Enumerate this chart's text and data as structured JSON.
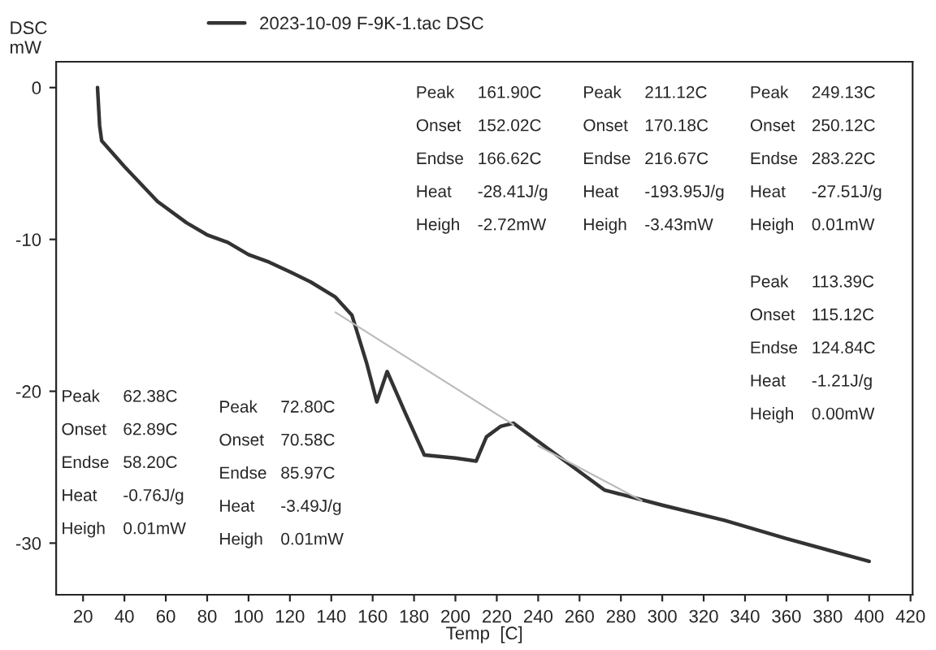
{
  "chart_data": {
    "type": "line",
    "xlabel": "Temp  [C]",
    "ylabel": "DSC\nmW",
    "series": [
      {
        "name": "2023-10-09 F-9K-1.tac DSC",
        "color": "#333333",
        "x": [
          27,
          28,
          29,
          40,
          56,
          70,
          80,
          90,
          100,
          110,
          121,
          130,
          142,
          150,
          157,
          162,
          167,
          176,
          185,
          200,
          210,
          215,
          222,
          228,
          240,
          255,
          272,
          300,
          330,
          360,
          400
        ],
        "values": [
          0,
          -2.5,
          -3.5,
          -5.2,
          -7.5,
          -8.9,
          -9.7,
          -10.2,
          -11.0,
          -11.5,
          -12.2,
          -12.8,
          -13.8,
          -15.0,
          -18.1,
          -20.7,
          -18.7,
          -21.5,
          -24.2,
          -24.4,
          -24.6,
          -23.0,
          -22.3,
          -22.1,
          -23.3,
          -24.8,
          -26.5,
          -27.5,
          -28.5,
          -29.7,
          -31.2
        ]
      },
      {
        "color": "#bbbbbb",
        "x": [
          142,
          228
        ],
        "values": [
          -14.8,
          -22.2
        ]
      },
      {
        "color": "#bbbbbb",
        "x": [
          240,
          290
        ],
        "values": [
          -23.6,
          -27.2
        ]
      }
    ],
    "xlim": [
      7,
      421
    ],
    "ylim": [
      -33.4,
      1.7
    ],
    "xticks": [
      20,
      40,
      60,
      80,
      100,
      120,
      140,
      160,
      180,
      200,
      220,
      240,
      260,
      280,
      300,
      320,
      340,
      360,
      380,
      400,
      420
    ],
    "yticks": [
      0,
      -10,
      -20,
      -30
    ],
    "grid": false,
    "legend": "top",
    "marker": "none",
    "line_style": "solid",
    "annotations": [
      "Peak 161.90C\nOnset 152.02C\nEndse 166.62C\nHeat -28.41J/g\nHeigh -2.72mW",
      "Peak 211.12C\nOnset 170.18C\nEndse 216.67C\nHeat -193.95J/g\nHeigh -3.43mW",
      "Peak 249.13C\nOnset 250.12C\nEndse 283.22C\nHeat -27.51J/g\nHeigh 0.01mW",
      "Peak 113.39C\nOnset 115.12C\nEndse 124.84C\nHeat -1.21J/g\nHeigh 0.00mW",
      "Peak 62.38C\nOnset 62.89C\nEndse 58.20C\nHeat -0.76J/g\nHeigh 0.01mW",
      "Peak 72.80C\nOnset 70.58C\nEndse 85.97C\nHeat -3.49J/g\nHeigh 0.01mW"
    ]
  }
}
